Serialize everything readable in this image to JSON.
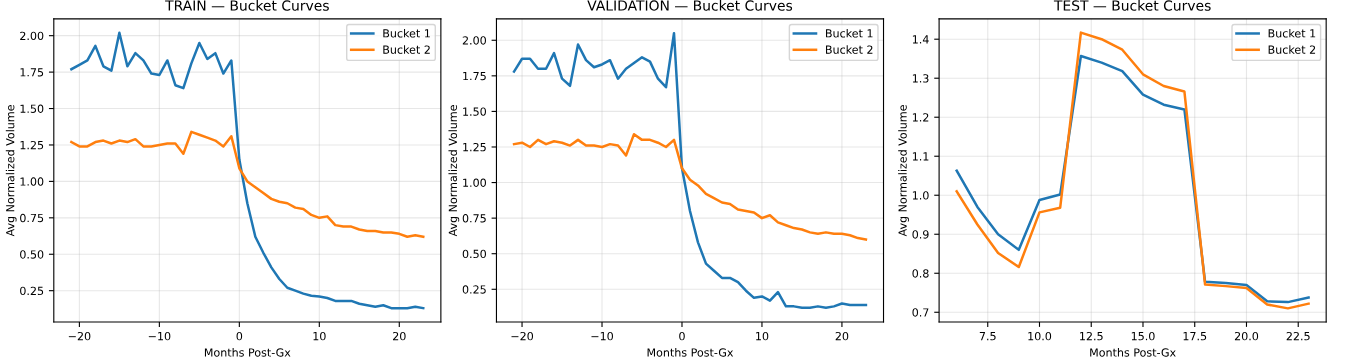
{
  "chart_data": [
    {
      "type": "line",
      "title": "TRAIN — Bucket Curves",
      "xlabel": "Months Post-Gx",
      "ylabel": "Avg Normalized Volume",
      "x": [
        -21,
        -20,
        -19,
        -18,
        -17,
        -16,
        -15,
        -14,
        -13,
        -12,
        -11,
        -10,
        -9,
        -8,
        -7,
        -6,
        -5,
        -4,
        -3,
        -2,
        -1,
        0,
        1,
        2,
        3,
        4,
        5,
        6,
        7,
        8,
        9,
        10,
        11,
        12,
        13,
        14,
        15,
        16,
        17,
        18,
        19,
        20,
        21,
        22,
        23
      ],
      "series": [
        {
          "name": "Bucket 1",
          "color": "#1f77b4",
          "values": [
            1.77,
            1.8,
            1.83,
            1.93,
            1.79,
            1.76,
            2.02,
            1.79,
            1.88,
            1.83,
            1.74,
            1.73,
            1.83,
            1.66,
            1.64,
            1.81,
            1.95,
            1.84,
            1.88,
            1.74,
            1.83,
            1.15,
            0.85,
            0.62,
            0.51,
            0.41,
            0.33,
            0.27,
            0.25,
            0.23,
            0.215,
            0.21,
            0.2,
            0.18,
            0.18,
            0.18,
            0.16,
            0.15,
            0.14,
            0.15,
            0.13,
            0.13,
            0.13,
            0.14,
            0.13
          ]
        },
        {
          "name": "Bucket 2",
          "color": "#ff7f0e",
          "values": [
            1.27,
            1.24,
            1.24,
            1.27,
            1.28,
            1.26,
            1.28,
            1.27,
            1.29,
            1.24,
            1.24,
            1.25,
            1.26,
            1.26,
            1.19,
            1.34,
            1.32,
            1.3,
            1.28,
            1.24,
            1.31,
            1.09,
            1.0,
            0.96,
            0.92,
            0.88,
            0.86,
            0.85,
            0.82,
            0.81,
            0.77,
            0.75,
            0.76,
            0.7,
            0.69,
            0.69,
            0.67,
            0.66,
            0.66,
            0.65,
            0.65,
            0.64,
            0.62,
            0.63,
            0.62
          ]
        }
      ],
      "xlim": [
        -23.2,
        25.2
      ],
      "ylim": [
        0.035,
        2.115
      ],
      "xticks": [
        {
          "value": -20,
          "label": "−20"
        },
        {
          "value": -10,
          "label": "−10"
        },
        0,
        10,
        20
      ],
      "yticks": [
        {
          "value": 0.25,
          "label": "0.25"
        },
        {
          "value": 0.5,
          "label": "0.50"
        },
        {
          "value": 0.75,
          "label": "0.75"
        },
        {
          "value": 1.0,
          "label": "1.00"
        },
        {
          "value": 1.25,
          "label": "1.25"
        },
        {
          "value": 1.5,
          "label": "1.50"
        },
        {
          "value": 1.75,
          "label": "1.75"
        },
        {
          "value": 2.0,
          "label": "2.00"
        }
      ],
      "grid": true,
      "legend": "top right",
      "marker": "none",
      "line_style": "solid"
    },
    {
      "type": "line",
      "title": "VALIDATION — Bucket Curves",
      "xlabel": "Months Post-Gx",
      "ylabel": "Avg Normalized Volume",
      "x": [
        -21,
        -20,
        -19,
        -18,
        -17,
        -16,
        -15,
        -14,
        -13,
        -12,
        -11,
        -10,
        -9,
        -8,
        -7,
        -6,
        -5,
        -4,
        -3,
        -2,
        -1,
        0,
        1,
        2,
        3,
        4,
        5,
        6,
        7,
        8,
        9,
        10,
        11,
        12,
        13,
        14,
        15,
        16,
        17,
        18,
        19,
        20,
        21,
        22,
        23
      ],
      "series": [
        {
          "name": "Bucket 1",
          "color": "#1f77b4",
          "values": [
            1.78,
            1.87,
            1.87,
            1.8,
            1.8,
            1.91,
            1.73,
            1.68,
            1.97,
            1.86,
            1.81,
            1.83,
            1.86,
            1.73,
            1.8,
            1.84,
            1.88,
            1.85,
            1.73,
            1.67,
            2.05,
            1.1,
            0.8,
            0.58,
            0.43,
            0.38,
            0.33,
            0.33,
            0.3,
            0.24,
            0.19,
            0.2,
            0.17,
            0.23,
            0.13,
            0.13,
            0.12,
            0.12,
            0.13,
            0.12,
            0.13,
            0.15,
            0.14,
            0.14,
            0.14
          ]
        },
        {
          "name": "Bucket 2",
          "color": "#ff7f0e",
          "values": [
            1.27,
            1.28,
            1.25,
            1.3,
            1.27,
            1.29,
            1.28,
            1.26,
            1.3,
            1.26,
            1.26,
            1.25,
            1.27,
            1.26,
            1.19,
            1.34,
            1.3,
            1.3,
            1.28,
            1.25,
            1.3,
            1.1,
            1.02,
            0.98,
            0.92,
            0.89,
            0.86,
            0.85,
            0.81,
            0.8,
            0.79,
            0.75,
            0.77,
            0.72,
            0.7,
            0.68,
            0.67,
            0.65,
            0.64,
            0.65,
            0.64,
            0.64,
            0.63,
            0.61,
            0.6
          ]
        }
      ],
      "xlim": [
        -23.2,
        25.2
      ],
      "ylim": [
        0.02,
        2.15
      ],
      "xticks": [
        {
          "value": -20,
          "label": "−20"
        },
        {
          "value": -10,
          "label": "−10"
        },
        0,
        10,
        20
      ],
      "yticks": [
        {
          "value": 0.25,
          "label": "0.25"
        },
        {
          "value": 0.5,
          "label": "0.50"
        },
        {
          "value": 0.75,
          "label": "0.75"
        },
        {
          "value": 1.0,
          "label": "1.00"
        },
        {
          "value": 1.25,
          "label": "1.25"
        },
        {
          "value": 1.5,
          "label": "1.50"
        },
        {
          "value": 1.75,
          "label": "1.75"
        },
        {
          "value": 2.0,
          "label": "2.00"
        }
      ],
      "grid": true,
      "legend": "top right",
      "marker": "none",
      "line_style": "solid"
    },
    {
      "type": "line",
      "title": "TEST — Bucket Curves",
      "xlabel": "Months Post-Gx",
      "ylabel": "Avg Normalized Volume",
      "x": [
        6,
        7,
        8,
        9,
        10,
        11,
        12,
        13,
        14,
        15,
        16,
        17,
        18,
        19,
        20,
        21,
        22,
        23
      ],
      "series": [
        {
          "name": "Bucket 1",
          "color": "#1f77b4",
          "values": [
            1.063,
            0.97,
            0.9,
            0.86,
            0.988,
            1.002,
            1.357,
            1.34,
            1.318,
            1.258,
            1.232,
            1.22,
            0.778,
            0.775,
            0.77,
            0.728,
            0.726,
            0.738
          ]
        },
        {
          "name": "Bucket 2",
          "color": "#ff7f0e",
          "values": [
            1.01,
            0.925,
            0.852,
            0.816,
            0.956,
            0.968,
            1.417,
            1.4,
            1.373,
            1.31,
            1.28,
            1.266,
            0.771,
            0.767,
            0.762,
            0.72,
            0.71,
            0.722
          ]
        }
      ],
      "xlim": [
        5.15,
        23.85
      ],
      "ylim": [
        0.675,
        1.452
      ],
      "xticks": [
        {
          "value": 7.5,
          "label": "7.5"
        },
        {
          "value": 10,
          "label": "10.0"
        },
        {
          "value": 12.5,
          "label": "12.5"
        },
        {
          "value": 15,
          "label": "15.0"
        },
        {
          "value": 17.5,
          "label": "17.5"
        },
        {
          "value": 20,
          "label": "20.0"
        },
        {
          "value": 22.5,
          "label": "22.5"
        }
      ],
      "yticks": [
        0.7,
        0.8,
        0.9,
        {
          "value": 1.0,
          "label": "1.0"
        },
        1.1,
        1.2,
        1.3,
        1.4
      ],
      "grid": true,
      "legend": "top right",
      "marker": "none",
      "line_style": "solid"
    }
  ]
}
